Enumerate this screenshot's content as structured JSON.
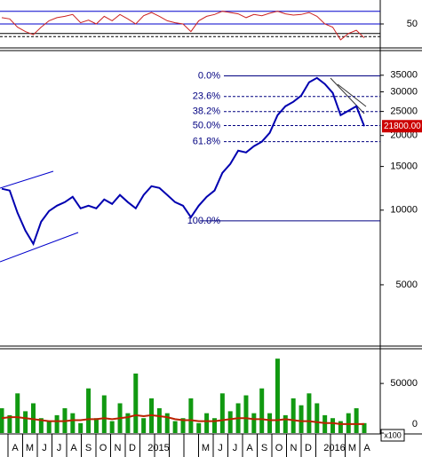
{
  "chart_data": [
    {
      "type": "line",
      "panel": "rsi",
      "color": "#cc2222",
      "values": [
        60,
        58,
        45,
        38,
        33,
        45,
        55,
        60,
        62,
        65,
        52,
        56,
        50,
        62,
        55,
        65,
        58,
        50,
        63,
        68,
        62,
        55,
        52,
        50,
        38,
        55,
        62,
        65,
        70,
        68,
        66,
        60,
        65,
        63,
        67,
        70,
        66,
        64,
        65,
        68,
        62,
        50,
        45,
        25,
        35,
        40,
        28
      ],
      "ylim": [
        15,
        85
      ],
      "yticks": [
        50
      ],
      "hlines": [
        70,
        50,
        35,
        30
      ],
      "hline_color": "#0000cc"
    },
    {
      "type": "line",
      "panel": "price",
      "color": "#0000b0",
      "log_scale": true,
      "values": [
        12200,
        12000,
        9760,
        8270,
        7310,
        8980,
        9920,
        10420,
        10770,
        11320,
        10170,
        10420,
        10170,
        11040,
        10590,
        11510,
        10770,
        10170,
        11510,
        12490,
        12290,
        11510,
        10770,
        10420,
        9360,
        10420,
        11320,
        12000,
        14140,
        15350,
        17370,
        17090,
        18110,
        18870,
        20490,
        24160,
        26240,
        27340,
        28960,
        32780,
        34150,
        32240,
        29690,
        24160,
        25170,
        26240,
        21800
      ],
      "ylim": [
        2830,
        44000
      ],
      "yticks": [
        5000,
        10000,
        15000,
        20000,
        25000,
        30000,
        35000
      ],
      "fib_levels": [
        {
          "value": 34800,
          "label": "0.0%"
        },
        {
          "value": 28723,
          "label": "23.6%"
        },
        {
          "value": 24963,
          "label": "38.2%"
        },
        {
          "value": 21925,
          "label": "50.0%"
        },
        {
          "value": 18887,
          "label": "61.8%"
        },
        {
          "value": 9050,
          "label": "100.0%"
        }
      ],
      "last_price": {
        "value": 21800,
        "label": "21800.00"
      }
    },
    {
      "type": "bar",
      "panel": "volume",
      "color": "#119911",
      "unit_label": "x100",
      "values": [
        25000,
        18000,
        40000,
        22000,
        30000,
        15000,
        12000,
        18000,
        25000,
        20000,
        10000,
        45000,
        15000,
        38000,
        12000,
        30000,
        20000,
        60000,
        15000,
        35000,
        25000,
        20000,
        12000,
        15000,
        35000,
        10000,
        20000,
        15000,
        40000,
        22000,
        30000,
        38000,
        20000,
        45000,
        20000,
        75000,
        18000,
        35000,
        28000,
        40000,
        30000,
        18000,
        15000,
        12000,
        20000,
        25000,
        10000
      ],
      "moving_average": {
        "color": "#bb2200",
        "values": [
          15000,
          16000,
          16000,
          15000,
          14000,
          13000,
          12000,
          12000,
          12000,
          13000,
          13000,
          14000,
          14000,
          15000,
          14000,
          15000,
          16000,
          18000,
          17000,
          18000,
          17000,
          16000,
          14000,
          13000,
          13000,
          12000,
          12000,
          12000,
          13000,
          14000,
          15000,
          15000,
          14000,
          14000,
          13000,
          13000,
          14000,
          13000,
          12000,
          12000,
          11000,
          10000,
          10000,
          9000,
          9000,
          9000,
          9000
        ]
      },
      "ylim": [
        0,
        85000
      ],
      "yticks": [
        0,
        50000
      ]
    }
  ],
  "x_axis_labels": [
    "A",
    "M",
    "J",
    "J",
    "A",
    "S",
    "O",
    "N",
    "D",
    "2015",
    null,
    null,
    null,
    "M",
    "J",
    "J",
    "A",
    "S",
    "O",
    "N",
    "D",
    "2016",
    null,
    "M",
    "A"
  ]
}
